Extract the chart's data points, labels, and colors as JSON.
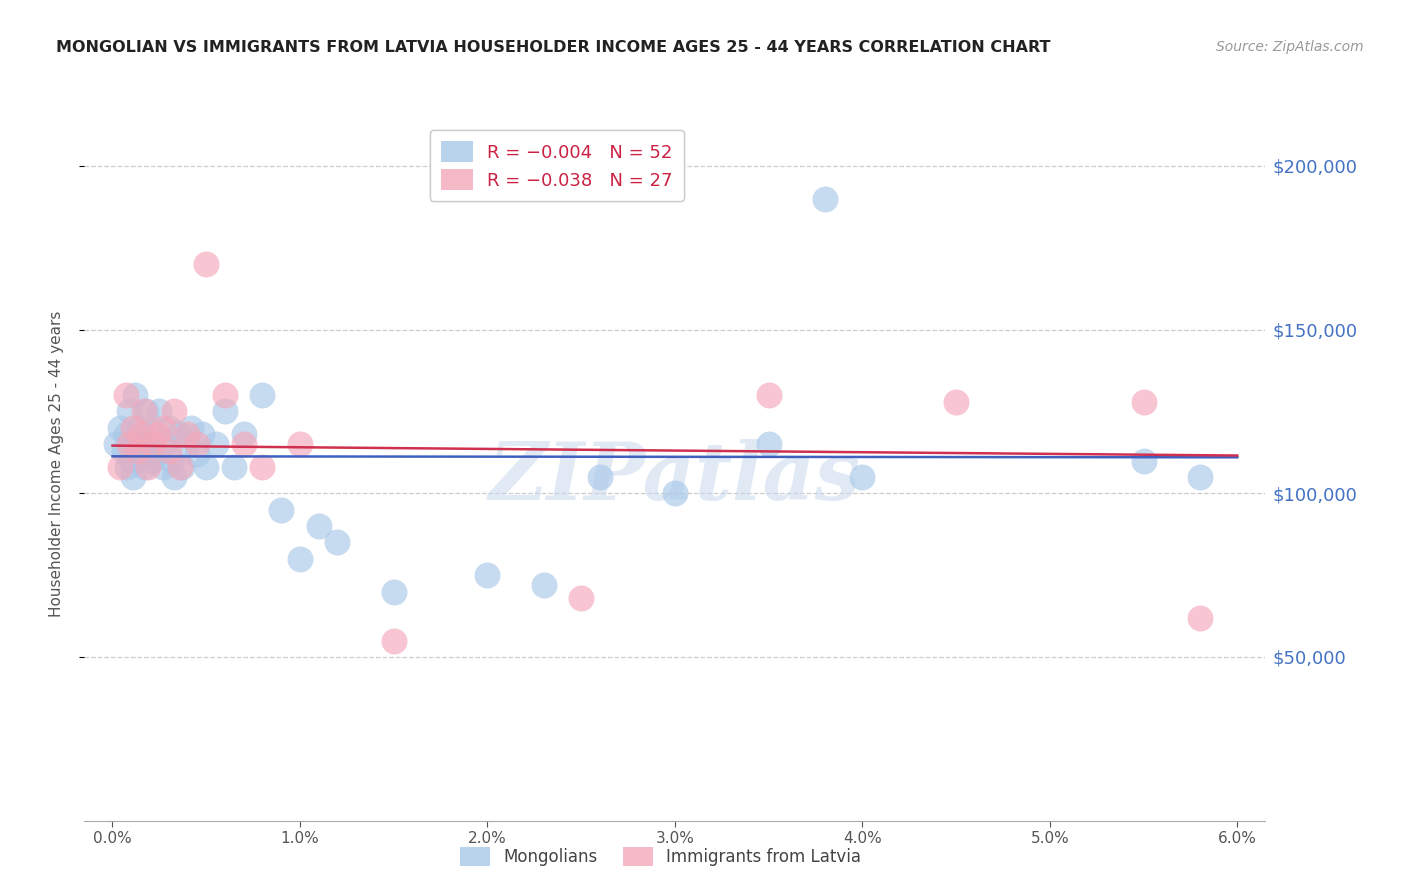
{
  "title": "MONGOLIAN VS IMMIGRANTS FROM LATVIA HOUSEHOLDER INCOME AGES 25 - 44 YEARS CORRELATION CHART",
  "source": "Source: ZipAtlas.com",
  "ylabel": "Householder Income Ages 25 - 44 years",
  "xlabel_vals": [
    0.0,
    1.0,
    2.0,
    3.0,
    4.0,
    5.0,
    6.0
  ],
  "ytick_labels": [
    "$50,000",
    "$100,000",
    "$150,000",
    "$200,000"
  ],
  "ytick_vals": [
    50000,
    100000,
    150000,
    200000
  ],
  "blue_color": "#a8c8e8",
  "pink_color": "#f4a8ba",
  "trendline_blue": "#4060c0",
  "trendline_pink": "#d03050",
  "watermark": "ZIPatlas",
  "mongolian_x": [
    0.02,
    0.04,
    0.06,
    0.07,
    0.08,
    0.09,
    0.1,
    0.11,
    0.12,
    0.13,
    0.14,
    0.15,
    0.16,
    0.17,
    0.18,
    0.19,
    0.2,
    0.21,
    0.22,
    0.23,
    0.25,
    0.27,
    0.28,
    0.3,
    0.32,
    0.33,
    0.35,
    0.37,
    0.4,
    0.42,
    0.45,
    0.48,
    0.5,
    0.55,
    0.6,
    0.65,
    0.7,
    0.8,
    0.9,
    1.0,
    1.1,
    1.2,
    1.5,
    2.0,
    2.3,
    2.6,
    3.0,
    3.5,
    3.8,
    4.0,
    5.5,
    5.8
  ],
  "mongolian_y": [
    115000,
    120000,
    113000,
    118000,
    108000,
    125000,
    110000,
    105000,
    130000,
    115000,
    120000,
    112000,
    118000,
    108000,
    125000,
    113000,
    115000,
    110000,
    118000,
    112000,
    125000,
    108000,
    115000,
    120000,
    110000,
    105000,
    118000,
    108000,
    115000,
    120000,
    112000,
    118000,
    108000,
    115000,
    125000,
    108000,
    118000,
    130000,
    95000,
    80000,
    90000,
    85000,
    70000,
    75000,
    72000,
    105000,
    100000,
    115000,
    190000,
    105000,
    110000,
    105000
  ],
  "latvian_x": [
    0.04,
    0.07,
    0.09,
    0.11,
    0.13,
    0.15,
    0.17,
    0.19,
    0.21,
    0.24,
    0.27,
    0.3,
    0.33,
    0.36,
    0.4,
    0.45,
    0.5,
    0.6,
    0.7,
    0.8,
    1.0,
    1.5,
    2.5,
    3.5,
    4.5,
    5.5,
    5.8
  ],
  "latvian_y": [
    108000,
    130000,
    115000,
    120000,
    113000,
    118000,
    125000,
    108000,
    115000,
    118000,
    120000,
    113000,
    125000,
    108000,
    118000,
    115000,
    170000,
    130000,
    115000,
    108000,
    115000,
    55000,
    68000,
    130000,
    128000,
    128000,
    62000
  ]
}
